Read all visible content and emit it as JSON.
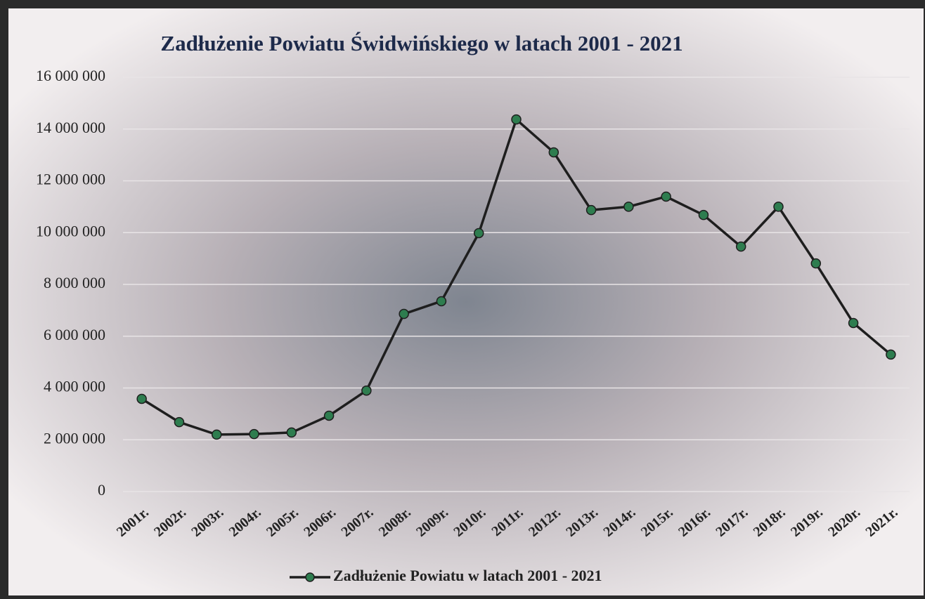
{
  "chart_data": {
    "type": "line",
    "title": "Zadłużenie Powiatu Świdwińskiego w latach 2001 - 2021",
    "categories": [
      "2001r.",
      "2002r.",
      "2003r.",
      "2004r.",
      "2005r.",
      "2006r.",
      "2007r.",
      "2008r.",
      "2009r.",
      "2010r.",
      "2011r.",
      "2012r.",
      "2013r.",
      "2014r.",
      "2015r.",
      "2016r.",
      "2017r.",
      "2018r.",
      "2019r.",
      "2020r.",
      "2021r."
    ],
    "series": [
      {
        "name": "Zadłużenie Powiatu w latach 2001 - 2021",
        "color": "#1e1e1e",
        "marker_color": "#2e7d4f",
        "values": [
          3580000,
          2680000,
          2200000,
          2220000,
          2280000,
          2930000,
          3900000,
          6860000,
          7350000,
          9980000,
          14370000,
          13100000,
          10870000,
          11000000,
          11390000,
          10680000,
          9460000,
          11000000,
          8810000,
          6510000,
          5290000
        ]
      }
    ],
    "ylim": [
      0,
      16000000
    ],
    "yticks": [
      0,
      {
        "value": 2000000,
        "label": "2 000 000"
      },
      {
        "value": 4000000,
        "label": "4 000 000"
      },
      {
        "value": 6000000,
        "label": "6 000 000"
      },
      {
        "value": 8000000,
        "label": "8 000 000"
      },
      {
        "value": 10000000,
        "label": "10 000 000"
      },
      {
        "value": 12000000,
        "label": "12 000 000"
      },
      {
        "value": 14000000,
        "label": "14 000 000"
      },
      {
        "value": 16000000,
        "label": "16 000 000"
      }
    ],
    "grid": true,
    "legend": "bottom"
  }
}
